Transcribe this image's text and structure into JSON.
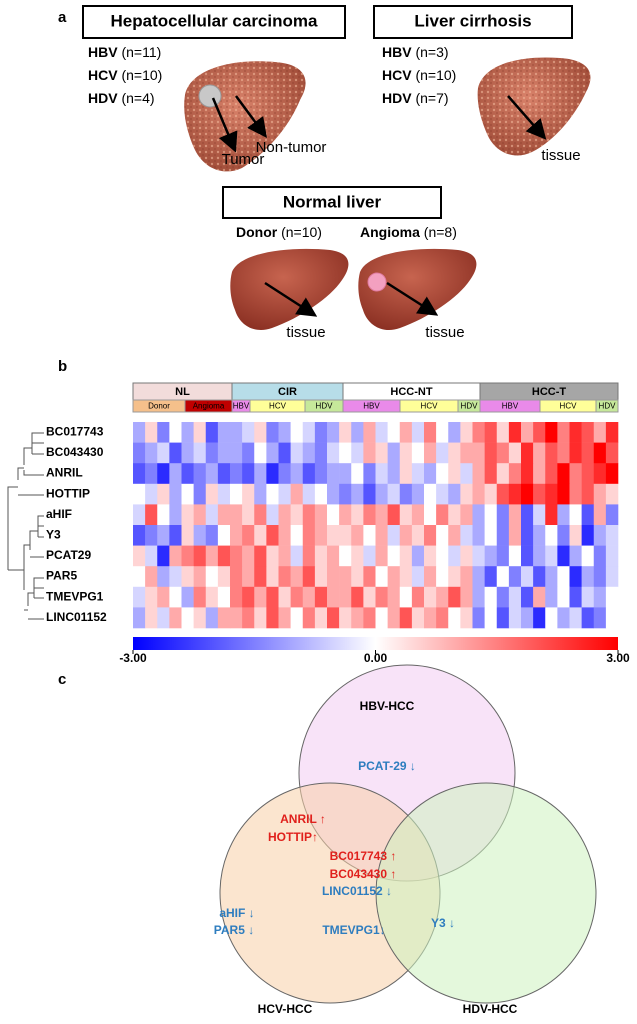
{
  "panel_a": {
    "label": "a",
    "hcc": {
      "title": "Hepatocellular carcinoma",
      "groups": [
        {
          "name": "HBV",
          "n": "(n=11)"
        },
        {
          "name": "HCV",
          "n": "(n=10)"
        },
        {
          "name": "HDV",
          "n": "(n=4)"
        }
      ],
      "arrow_tumor": "Tumor",
      "arrow_nontumor": "Non-tumor"
    },
    "cirrhosis": {
      "title": "Liver cirrhosis",
      "groups": [
        {
          "name": "HBV",
          "n": "(n=3)"
        },
        {
          "name": "HCV",
          "n": "(n=10)"
        },
        {
          "name": "HDV",
          "n": "(n=7)"
        }
      ],
      "arrow": "tissue"
    },
    "normal": {
      "title": "Normal liver",
      "donor": {
        "name": "Donor",
        "n": "(n=10)",
        "arrow": "tissue"
      },
      "angioma": {
        "name": "Angioma",
        "n": "(n=8)",
        "arrow": "tissue"
      }
    }
  },
  "panel_b": {
    "label": "b",
    "groups": [
      "NL",
      "CIR",
      "HCC-NT",
      "HCC-T"
    ],
    "subgroups": [
      "Donor",
      "Angioma",
      "HBV",
      "HCV",
      "HDV",
      "HBV",
      "HCV",
      "HDV",
      "HBV",
      "HCV",
      "HDV"
    ],
    "genes": [
      "BC017743",
      "BC043430",
      "ANRIL",
      "HOTTIP",
      "aHIF",
      "Y3",
      "PCAT29",
      "PAR5",
      "TMEVPG1",
      "LINC01152"
    ],
    "matrix": [
      [
        -1,
        0.5,
        -1.5,
        0,
        -1,
        0.5,
        -2,
        -1,
        -1,
        -0.5,
        0.5,
        -1.5,
        -1,
        0,
        -0.5,
        -1.5,
        -1,
        0.5,
        -1,
        1,
        -0.5,
        0,
        1,
        -0.5,
        1.5,
        0,
        -1,
        0.5,
        1.5,
        2,
        0.5,
        2.5,
        1,
        2,
        3,
        1.5,
        2.5,
        2,
        1,
        2.5
      ],
      [
        -1.5,
        -1,
        -0.5,
        -2,
        -1,
        -0.5,
        -1.5,
        -1,
        -1,
        -1.5,
        0,
        -1,
        -2,
        -0.5,
        -1,
        -1.5,
        -0.5,
        0,
        -0.5,
        1,
        0.5,
        -1,
        0.5,
        0,
        1,
        -0.5,
        0.5,
        1,
        1,
        2,
        1.5,
        0.5,
        2.5,
        1,
        2,
        1.5,
        2.5,
        2,
        3,
        2
      ],
      [
        -2,
        -1.5,
        -2.5,
        -1,
        -2,
        -1.5,
        -1,
        -2,
        -1.5,
        -2,
        -1,
        -2.5,
        -1.5,
        -1,
        -2,
        -1.5,
        -1,
        -1,
        0,
        -1.5,
        -0.5,
        -1,
        0.5,
        -0.5,
        -1,
        0,
        0.5,
        -0.5,
        1,
        2,
        0.5,
        1.5,
        2.5,
        1,
        2,
        3,
        1.5,
        2,
        2.5,
        3
      ],
      [
        0,
        -0.5,
        0.5,
        -1,
        0,
        -1.5,
        0.5,
        -0.5,
        0,
        0.5,
        -1,
        0,
        -0.5,
        1,
        -0.5,
        0,
        -1,
        -1.5,
        -1,
        -2,
        -1,
        -0.5,
        -1.5,
        -1,
        0,
        -0.5,
        -1,
        0.5,
        1,
        0.5,
        2,
        2.5,
        3,
        2,
        2.5,
        3,
        1.5,
        2,
        1,
        0.5
      ],
      [
        -0.5,
        2,
        0,
        -1,
        0.5,
        1,
        -0.5,
        1,
        1,
        0.5,
        1.5,
        -0.5,
        1,
        0.5,
        1.5,
        1,
        0,
        1,
        0.5,
        1.5,
        1,
        2,
        0.5,
        1,
        0,
        1.5,
        0.5,
        1,
        -1,
        0,
        -1.5,
        1,
        -2,
        -0.5,
        2.5,
        -1,
        0,
        -2,
        1,
        -1.5
      ],
      [
        -2,
        -1.5,
        -1,
        -2,
        0.5,
        -1,
        -1.5,
        0,
        1,
        1.5,
        0.5,
        2,
        1,
        0,
        1.5,
        1,
        0.5,
        0.5,
        1,
        0,
        1,
        -0.5,
        1,
        0.5,
        1.5,
        0,
        1,
        -0.5,
        -1,
        0,
        -1.5,
        1,
        -2,
        -1,
        0,
        -1.5,
        0.5,
        -2.5,
        -1,
        -0.5
      ],
      [
        0.5,
        -0.5,
        -2.5,
        1,
        1.5,
        2,
        1,
        2,
        1.5,
        1,
        2,
        0.5,
        1,
        -0.5,
        1.5,
        0.5,
        1,
        0,
        0.5,
        -0.5,
        1,
        0,
        0.5,
        -1,
        0.5,
        0,
        -0.5,
        0.5,
        -0.5,
        -1,
        -1.5,
        0,
        -2,
        -1,
        -0.5,
        -2.5,
        -1,
        0,
        -1.5,
        -0.5
      ],
      [
        0,
        1,
        -1,
        -0.5,
        0.5,
        1,
        0,
        0.5,
        1.5,
        1,
        2,
        0.5,
        1.5,
        1,
        2,
        0.5,
        1,
        1,
        0.5,
        1.5,
        0,
        1,
        0.5,
        -0.5,
        1,
        0,
        0.5,
        1,
        -1,
        -2,
        0,
        -1.5,
        -0.5,
        -2,
        -1,
        0,
        -2.5,
        -1,
        -1.5,
        -0.5
      ],
      [
        -0.5,
        0.5,
        1,
        0,
        -1,
        1.5,
        0.5,
        0,
        1.5,
        2,
        1,
        2,
        0.5,
        1.5,
        1,
        2,
        1,
        1,
        2,
        0.5,
        1.5,
        1,
        0,
        1.5,
        0.5,
        1,
        2,
        1,
        -1,
        0,
        -1.5,
        -0.5,
        -2,
        1,
        -1,
        0,
        -2,
        -0.5,
        -1,
        0
      ],
      [
        -1,
        0.5,
        -0.5,
        1,
        0,
        0.5,
        -1,
        1,
        1,
        1.5,
        0.5,
        2,
        1,
        0,
        1.5,
        0.5,
        2,
        0.5,
        1,
        1.5,
        0,
        1,
        2,
        0.5,
        1,
        1.5,
        0,
        0.5,
        -1.5,
        0,
        -2,
        -0.5,
        -1,
        -2.5,
        0,
        -1,
        -0.5,
        -2,
        -1.5,
        0
      ]
    ],
    "colorbar": {
      "ticks": [
        {
          "value": -3,
          "label": "-3.00"
        },
        {
          "value": 0,
          "label": "0.00"
        },
        {
          "value": 3,
          "label": "3.00"
        }
      ],
      "low_color": "#0000ff",
      "mid_color": "#ffffff",
      "high_color": "#ff0000"
    }
  },
  "panel_c": {
    "label": "c",
    "sets": [
      "HBV-HCC",
      "HCV-HCC",
      "HDV-HCC"
    ],
    "items": [
      {
        "text": "PCAT-29 ↓",
        "color": "#2e7dbf"
      },
      {
        "text": "ANRIL ↑",
        "color": "#e0201c"
      },
      {
        "text": "HOTTIP↑",
        "color": "#e0201c"
      },
      {
        "text": "BC017743 ↑",
        "color": "#e0201c"
      },
      {
        "text": "BC043430 ↑",
        "color": "#e0201c"
      },
      {
        "text": "LINC01152 ↓",
        "color": "#2e7dbf"
      },
      {
        "text": "aHIF ↓",
        "color": "#2e7dbf"
      },
      {
        "text": "PAR5 ↓",
        "color": "#2e7dbf"
      },
      {
        "text": "TMEVPG1↓",
        "color": "#2e7dbf"
      },
      {
        "text": "Y3 ↓",
        "color": "#2e7dbf"
      }
    ]
  }
}
